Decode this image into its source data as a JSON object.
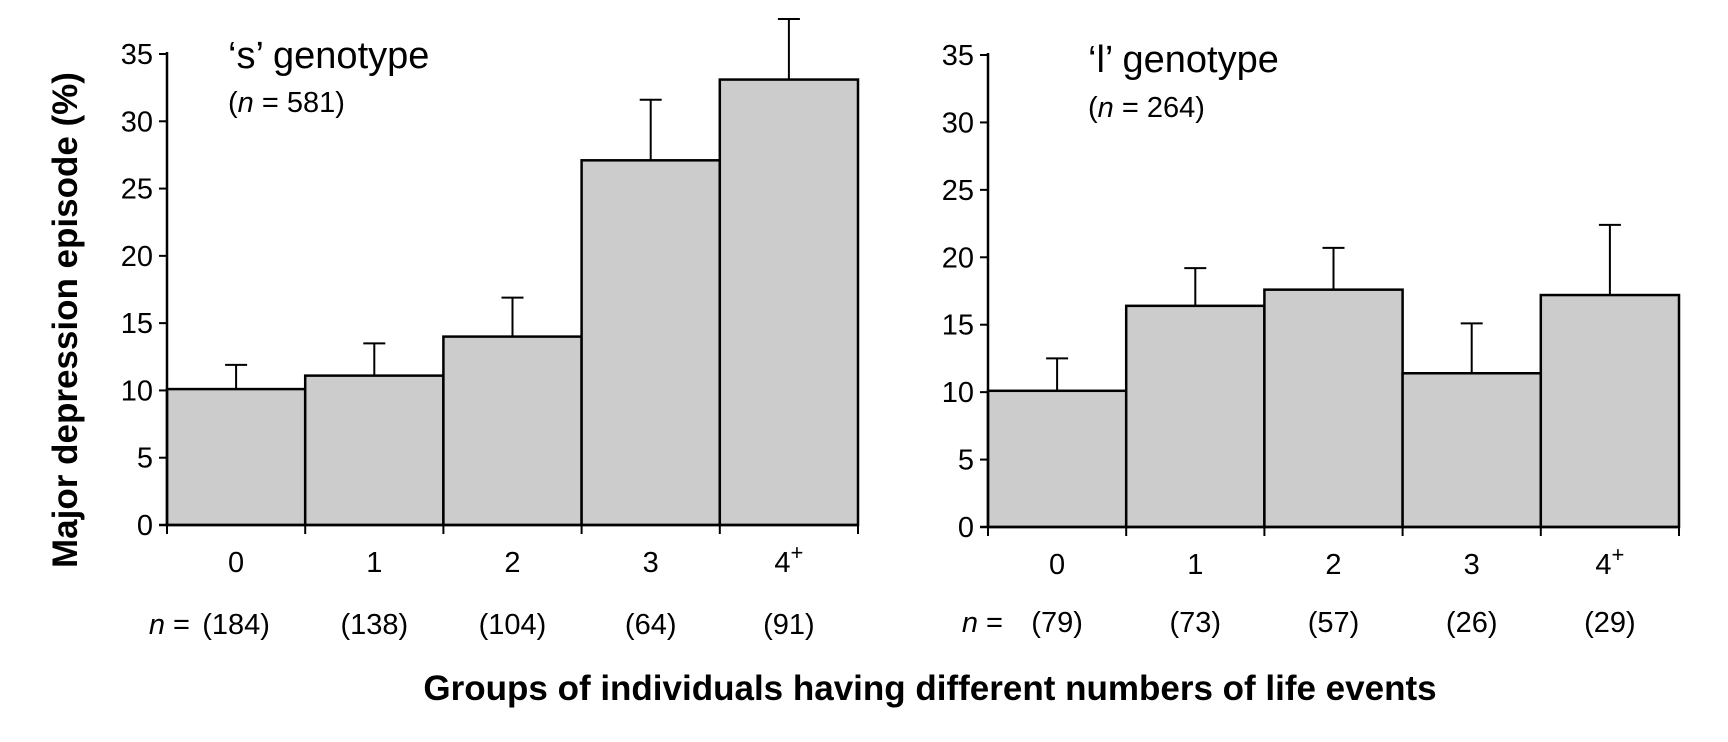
{
  "figure": {
    "ylabel": "Major depression episode (%)",
    "xlabel": "Groups of individuals having different numbers of life events",
    "n_prefix_1": "n",
    "n_prefix_2": " = ",
    "error_bars": "one-sided, upward",
    "bar_fill": "#cccccc",
    "bar_stroke": "#000000"
  },
  "chart_data": [
    {
      "type": "bar",
      "title": "‘s’ genotype",
      "subtitle_n": "n",
      "subtitle_rest": " = 581)",
      "subtitle_open": "(",
      "categories": [
        "0",
        "1",
        "2",
        "3",
        "4+"
      ],
      "values": [
        10.1,
        11.1,
        14.0,
        27.1,
        33.1
      ],
      "error_upper": [
        11.9,
        13.5,
        16.9,
        31.6,
        37.6
      ],
      "n_labels": [
        "(184)",
        "(138)",
        "(104)",
        "(64)",
        "(91)"
      ],
      "ylim": [
        0,
        35
      ],
      "yticks": [
        0,
        5,
        10,
        15,
        20,
        25,
        30,
        35
      ],
      "grid": false
    },
    {
      "type": "bar",
      "title": "‘l’ genotype",
      "subtitle_n": "n",
      "subtitle_rest": " = 264)",
      "subtitle_open": "(",
      "categories": [
        "0",
        "1",
        "2",
        "3",
        "4+"
      ],
      "values": [
        10.1,
        16.4,
        17.6,
        11.4,
        17.2
      ],
      "error_upper": [
        12.5,
        19.2,
        20.7,
        15.1,
        22.4
      ],
      "n_labels": [
        "(79)",
        "(73)",
        "(57)",
        "(26)",
        "(29)"
      ],
      "ylim": [
        0,
        35
      ],
      "yticks": [
        0,
        5,
        10,
        15,
        20,
        25,
        30,
        35
      ],
      "grid": false
    }
  ]
}
